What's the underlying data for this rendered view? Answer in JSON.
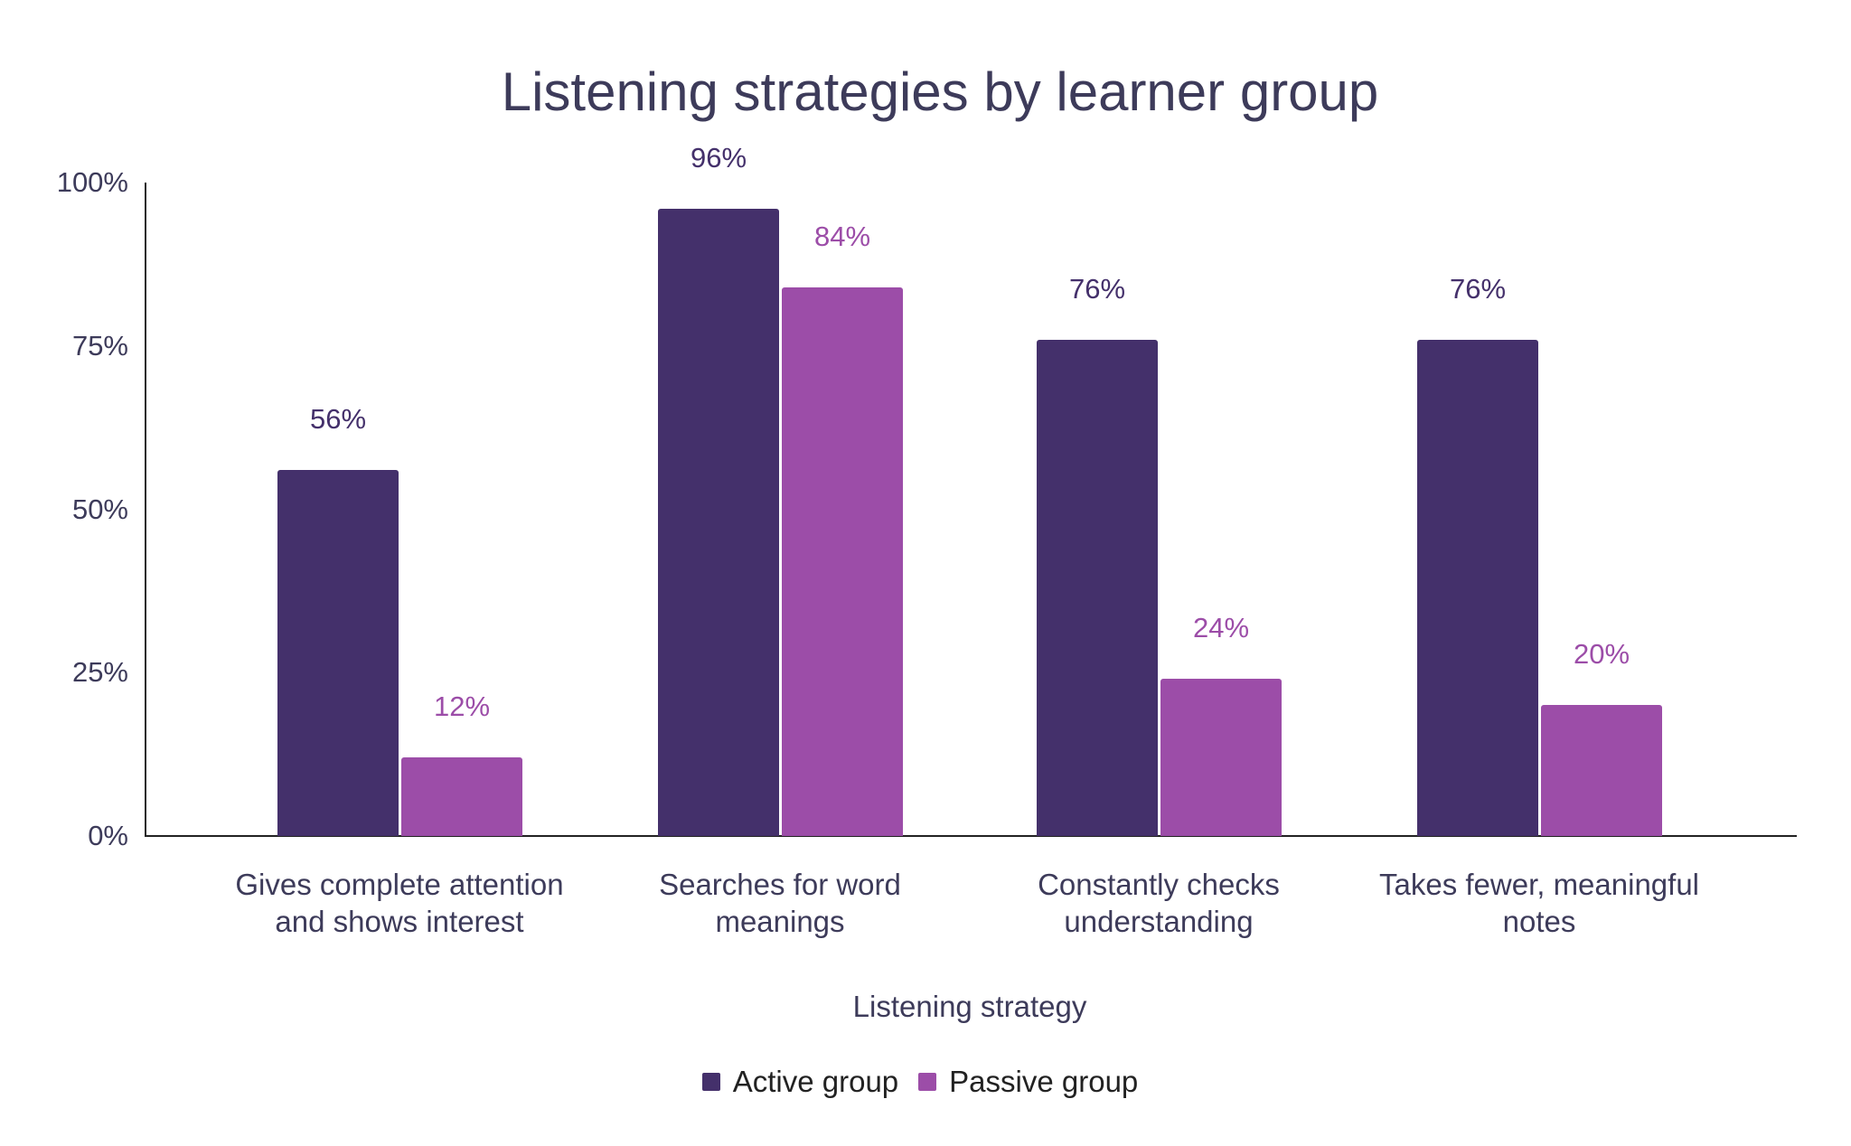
{
  "chart_data": {
    "type": "bar",
    "title": "Listening strategies by learner group",
    "xlabel": "Listening strategy",
    "ylabel": "",
    "ylim": [
      0,
      100
    ],
    "yticks": [
      "0%",
      "25%",
      "50%",
      "75%",
      "100%"
    ],
    "categories": [
      "Gives complete attention and shows interest",
      "Searches for word meanings",
      "Constantly checks understanding",
      "Takes fewer, meaningful notes"
    ],
    "category_label_lines": [
      "Gives complete attention\nand shows interest",
      "Searches for word\nmeanings",
      "Constantly checks\nunderstanding",
      "Takes fewer, meaningful\nnotes"
    ],
    "series": [
      {
        "name": "Active group",
        "color": "#44306b",
        "values": [
          56,
          96,
          76,
          76
        ],
        "labels": [
          "56%",
          "96%",
          "76%",
          "76%"
        ]
      },
      {
        "name": "Passive group",
        "color": "#9c4da8",
        "values": [
          12,
          84,
          24,
          20
        ],
        "labels": [
          "12%",
          "84%",
          "24%",
          "20%"
        ]
      }
    ],
    "grid": false,
    "legend_position": "bottom",
    "data_labels": true
  },
  "legend": {
    "items": [
      {
        "label": "Active group",
        "color": "#44306b"
      },
      {
        "label": "Passive group",
        "color": "#9c4da8"
      }
    ]
  }
}
